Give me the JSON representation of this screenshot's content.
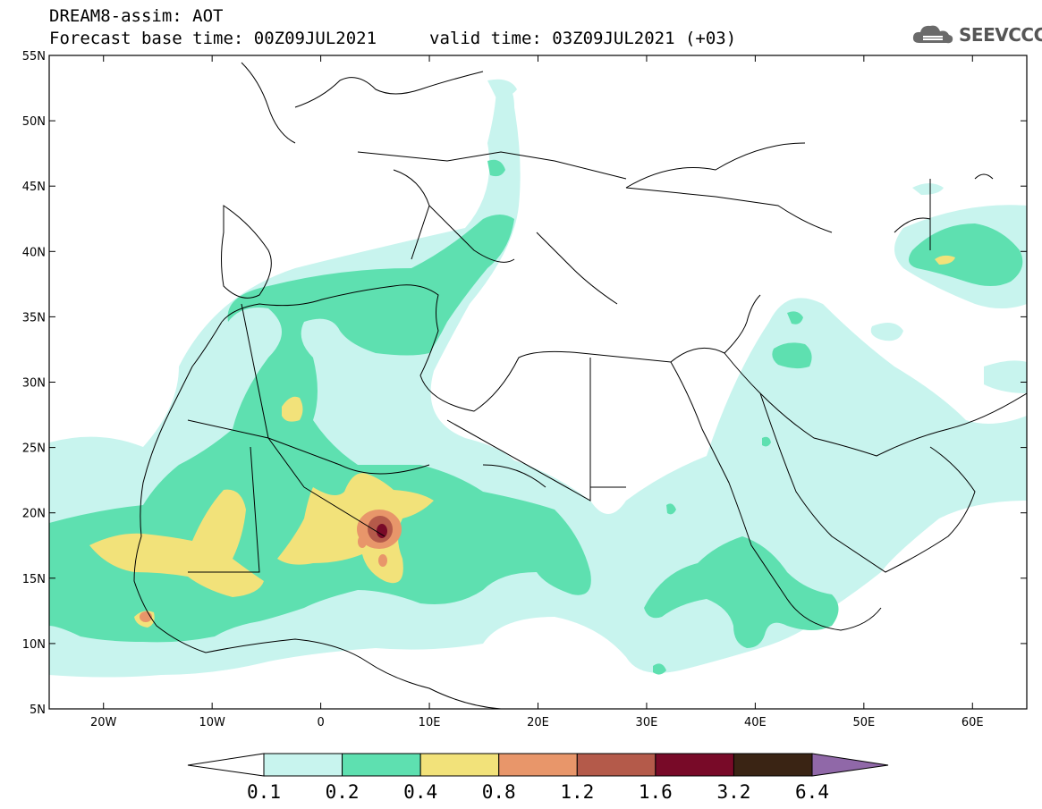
{
  "header": {
    "title": "DREAM8-assim: AOT",
    "base_time": "Forecast base time: 00Z09JUL2021",
    "valid_time": "valid time: 03Z09JUL2021 (+03)"
  },
  "logo": {
    "text": "SEEVCCC",
    "icon": "cloud-icon"
  },
  "map": {
    "lon_range": [
      -25,
      65
    ],
    "lat_range": [
      5,
      55
    ],
    "lat_ticks": [
      "55N",
      "50N",
      "45N",
      "40N",
      "35N",
      "30N",
      "25N",
      "20N",
      "15N",
      "10N",
      "5N"
    ],
    "lon_ticks": [
      "20W",
      "10W",
      "0",
      "10E",
      "20E",
      "30E",
      "40E",
      "50E",
      "60E"
    ]
  },
  "colorbar": {
    "labels": [
      "0.1",
      "0.2",
      "0.4",
      "0.8",
      "1.2",
      "1.6",
      "3.2",
      "6.4"
    ],
    "colors": [
      "#c8f4ee",
      "#5ee0b0",
      "#f2e27a",
      "#e8966a",
      "#b45a4a",
      "#780a28",
      "#3a2414"
    ],
    "under_color": "#ffffff",
    "over_color": "#9068a8"
  },
  "chart_data": {
    "type": "heatmap",
    "title": "DREAM8-assim: AOT",
    "variable": "AOT",
    "levels": [
      0.1,
      0.2,
      0.4,
      0.8,
      1.2,
      1.6,
      3.2,
      6.4
    ],
    "xlim": [
      -25,
      65
    ],
    "ylim": [
      5,
      55
    ],
    "x_ticks": [
      "20W",
      "10W",
      "0",
      "10E",
      "20E",
      "30E",
      "40E",
      "50E",
      "60E"
    ],
    "y_ticks": [
      "55N",
      "50N",
      "45N",
      "40N",
      "35N",
      "30N",
      "25N",
      "20N",
      "15N",
      "10N",
      "5N"
    ],
    "max_feature": {
      "lon": 5.5,
      "lat": 18.5,
      "level": "1.6-3.2"
    }
  }
}
